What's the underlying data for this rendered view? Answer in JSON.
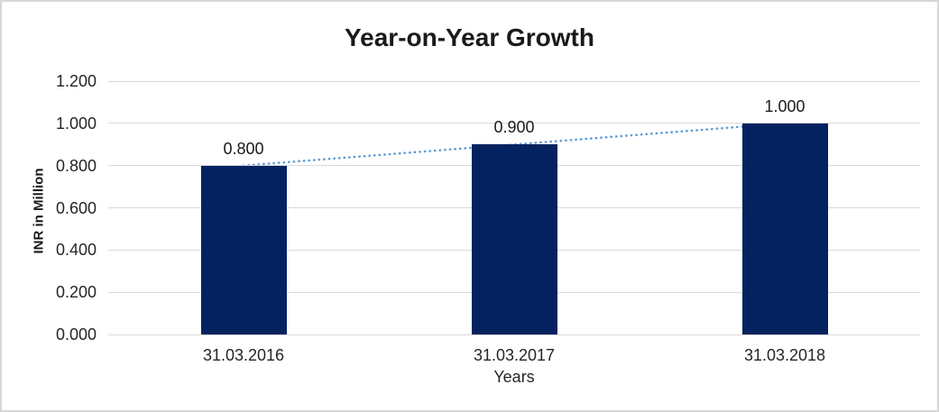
{
  "chart_data": {
    "type": "bar",
    "title": "Year-on-Year Growth",
    "xlabel": "Years",
    "ylabel": "INR in Million",
    "categories": [
      "31.03.2016",
      "31.03.2017",
      "31.03.2018"
    ],
    "values": [
      0.8,
      0.9,
      1.0
    ],
    "value_labels": [
      "0.800",
      "0.900",
      "1.000"
    ],
    "ylim": [
      0,
      1.2
    ],
    "yticks": [
      0,
      0.2,
      0.4,
      0.6,
      0.8,
      1.0,
      1.2
    ],
    "ytick_labels": [
      "0.000",
      "0.200",
      "0.400",
      "0.600",
      "0.800",
      "1.000",
      "1.200"
    ],
    "grid": "horizontal",
    "legend": "none",
    "colors": {
      "bar": "#04225f",
      "trendline": "#5b9bd5",
      "gridline": "#d9d9d9",
      "title_text": "#1a1a1a",
      "axis_text": "#262626",
      "card_border": "#d6d6d6"
    },
    "trendline": {
      "type": "linear",
      "style": "dotted",
      "color": "#5b9bd5",
      "start_value": 0.8,
      "end_value": 1.0
    }
  }
}
